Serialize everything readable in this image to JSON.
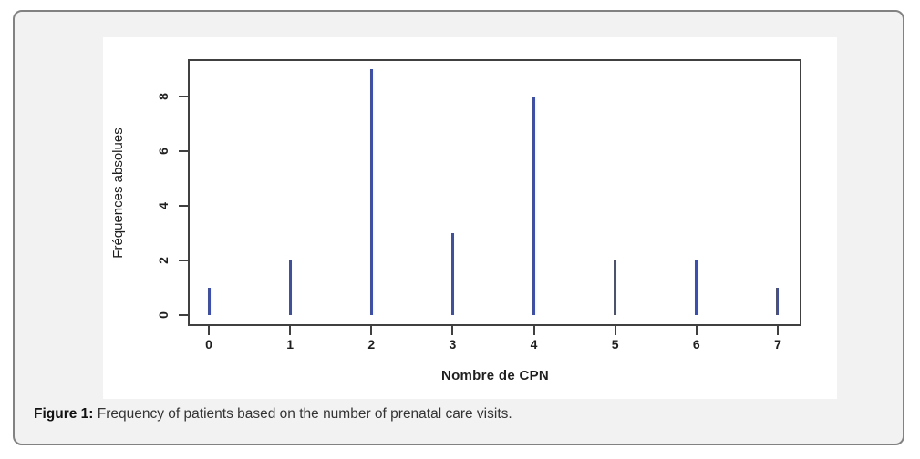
{
  "chart_data": {
    "type": "bar",
    "variant": "vertical-spike (R type='h')",
    "categories": [
      "0",
      "1",
      "2",
      "3",
      "4",
      "5",
      "6",
      "7"
    ],
    "values": [
      1,
      2,
      9,
      3,
      8,
      2,
      2,
      1
    ],
    "title": "",
    "xlabel": "Nombre de CPN",
    "ylabel": "Fréquences absolues",
    "yticks": [
      0,
      2,
      4,
      6,
      8
    ],
    "ylim": [
      -0.4,
      9.4
    ],
    "xlim": [
      -0.3,
      7.3
    ],
    "grid": false,
    "legend": null
  },
  "caption": {
    "label": "Figure 1:",
    "text": " Frequency of patients based on the number of prenatal care visits."
  },
  "colors": {
    "spike": "#3d4fae",
    "axis": "#404040",
    "box_background": "#f2f2f2",
    "box_border": "#828282",
    "panel_background": "#ffffff",
    "tick_text": "#1f1f1f",
    "caption_text": "#333333"
  }
}
